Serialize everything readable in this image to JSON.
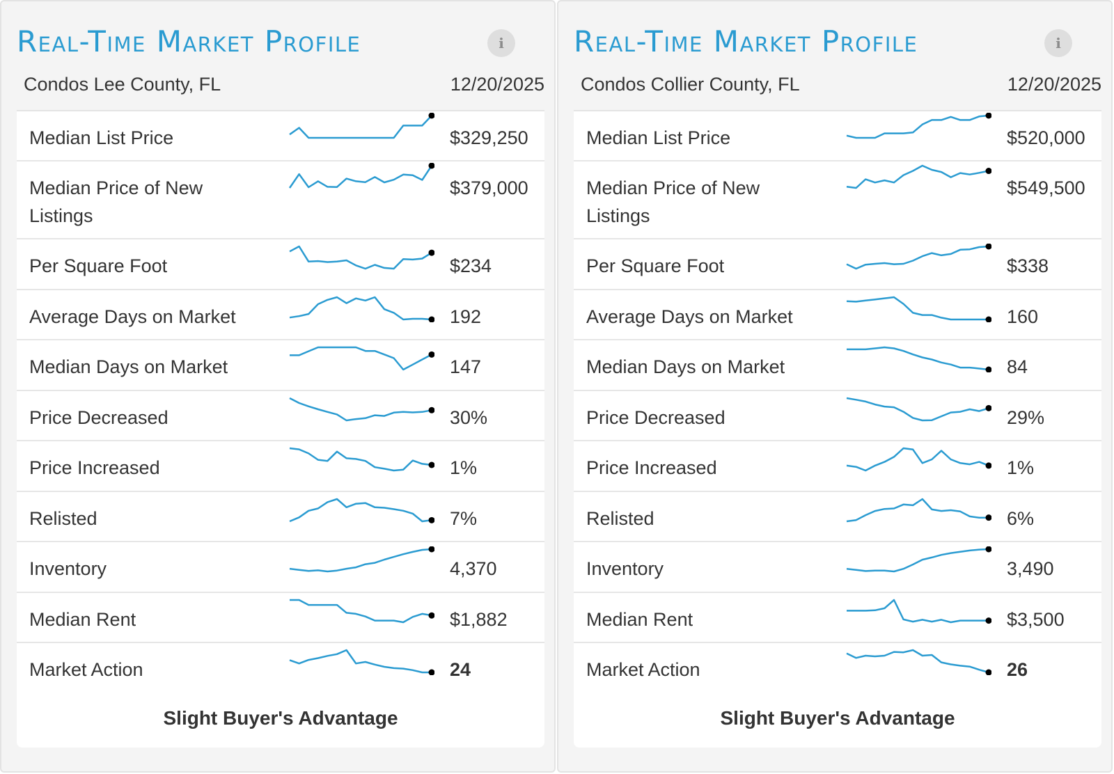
{
  "accent_color": "#2a9bd1",
  "panels": [
    {
      "title": "Real-Time Market Profile",
      "info_icon": "info-icon",
      "region": "Condos Lee County, FL",
      "date": "12/20/2025",
      "verdict": "Slight Buyer's Advantage",
      "rows": [
        {
          "label": "Median List Price",
          "value": "$329,250",
          "trend": [
            0.15,
            0.45,
            0.0,
            0.0,
            0.0,
            0.0,
            0.0,
            0.0,
            0.0,
            0.0,
            0.0,
            0.0,
            0.55,
            0.55,
            0.55,
            1.0
          ]
        },
        {
          "label": "Median Price of New Listings",
          "value": "$379,000",
          "trend": [
            0.0,
            0.62,
            0.03,
            0.3,
            0.05,
            0.04,
            0.42,
            0.3,
            0.26,
            0.49,
            0.25,
            0.37,
            0.6,
            0.57,
            0.36,
            1.0
          ]
        },
        {
          "label": "Per Square Foot",
          "value": "$234",
          "trend": [
            0.8,
            1.0,
            0.4,
            0.42,
            0.38,
            0.4,
            0.45,
            0.25,
            0.12,
            0.27,
            0.15,
            0.12,
            0.5,
            0.48,
            0.52,
            0.75
          ]
        },
        {
          "label": "Average Days on Market",
          "value": "192",
          "trend": [
            0.08,
            0.14,
            0.23,
            0.64,
            0.82,
            0.93,
            0.68,
            0.88,
            0.79,
            0.93,
            0.43,
            0.28,
            0.0,
            0.03,
            0.03,
            0.0
          ]
        },
        {
          "label": "Median Days on Market",
          "value": "147",
          "trend": [
            0.45,
            0.45,
            0.73,
            1.0,
            1.0,
            1.0,
            1.0,
            1.0,
            0.75,
            0.75,
            0.5,
            0.25,
            -0.55,
            -0.2,
            0.15,
            0.5
          ]
        },
        {
          "label": "Price Decreased",
          "value": "30%",
          "trend": [
            1.0,
            0.78,
            0.63,
            0.5,
            0.38,
            0.27,
            0.0,
            0.06,
            0.1,
            0.23,
            0.2,
            0.35,
            0.38,
            0.36,
            0.38,
            0.46
          ]
        },
        {
          "label": "Price Increased",
          "value": "1%",
          "trend": [
            1.0,
            0.95,
            0.77,
            0.48,
            0.43,
            0.85,
            0.55,
            0.52,
            0.43,
            0.15,
            0.08,
            0.0,
            0.04,
            0.45,
            0.3,
            0.25
          ]
        },
        {
          "label": "Relisted",
          "value": "7%",
          "trend": [
            0.0,
            0.17,
            0.45,
            0.55,
            0.82,
            0.95,
            0.6,
            0.75,
            0.78,
            0.6,
            0.58,
            0.52,
            0.45,
            0.33,
            0.0,
            0.05
          ]
        },
        {
          "label": "Inventory",
          "value": "4,370",
          "trend": [
            0.0,
            -0.05,
            -0.1,
            -0.07,
            -0.12,
            -0.08,
            0.0,
            0.06,
            0.2,
            0.26,
            0.4,
            0.52,
            0.64,
            0.74,
            0.83,
            0.86
          ]
        },
        {
          "label": "Median Rent",
          "value": "$1,882",
          "trend": [
            1.0,
            1.0,
            0.76,
            0.76,
            0.76,
            0.76,
            0.38,
            0.33,
            0.2,
            0.0,
            0.0,
            0.0,
            -0.08,
            0.18,
            0.33,
            0.25
          ]
        },
        {
          "label": "Market Action",
          "value": "24",
          "value_bold": true,
          "trend": [
            0.55,
            0.4,
            0.56,
            0.64,
            0.74,
            0.82,
            1.0,
            0.4,
            0.47,
            0.35,
            0.25,
            0.19,
            0.17,
            0.1,
            0.0,
            0.0
          ]
        }
      ]
    },
    {
      "title": "Real-Time Market Profile",
      "info_icon": "info-icon",
      "region": "Condos Collier County, FL",
      "date": "12/20/2025",
      "verdict": "Slight Buyer's Advantage",
      "rows": [
        {
          "label": "Median List Price",
          "value": "$520,000",
          "trend": [
            0.1,
            0.0,
            0.0,
            0.0,
            0.2,
            0.2,
            0.2,
            0.24,
            0.6,
            0.8,
            0.8,
            0.94,
            0.8,
            0.8,
            0.96,
            1.0
          ]
        },
        {
          "label": "Median Price of New Listings",
          "value": "$549,500",
          "trend": [
            0.0,
            -0.06,
            0.35,
            0.2,
            0.3,
            0.2,
            0.55,
            0.75,
            1.0,
            0.8,
            0.7,
            0.45,
            0.65,
            0.58,
            0.66,
            0.75
          ]
        },
        {
          "label": "Per Square Foot",
          "value": "$338",
          "trend": [
            0.2,
            0.0,
            0.18,
            0.22,
            0.25,
            0.2,
            0.22,
            0.36,
            0.56,
            0.7,
            0.6,
            0.66,
            0.85,
            0.87,
            0.97,
            1.0
          ]
        },
        {
          "label": "Average Days on Market",
          "value": "160",
          "trend": [
            0.82,
            0.8,
            0.85,
            0.9,
            0.95,
            1.0,
            0.7,
            0.3,
            0.2,
            0.2,
            0.08,
            0.0,
            0.0,
            0.0,
            0.0,
            0.0
          ]
        },
        {
          "label": "Median Days on Market",
          "value": "84",
          "trend": [
            1.0,
            1.0,
            1.0,
            1.05,
            1.1,
            1.05,
            0.92,
            0.75,
            0.6,
            0.5,
            0.35,
            0.25,
            0.1,
            0.1,
            0.05,
            0.0
          ]
        },
        {
          "label": "Price Decreased",
          "value": "29%",
          "trend": [
            1.0,
            0.93,
            0.85,
            0.72,
            0.63,
            0.6,
            0.4,
            0.13,
            0.02,
            0.03,
            0.2,
            0.37,
            0.4,
            0.51,
            0.43,
            0.56
          ]
        },
        {
          "label": "Price Increased",
          "value": "1%",
          "trend": [
            0.2,
            0.15,
            0.0,
            0.2,
            0.35,
            0.55,
            0.9,
            0.85,
            0.3,
            0.45,
            0.8,
            0.45,
            0.3,
            0.25,
            0.35,
            0.2
          ]
        },
        {
          "label": "Relisted",
          "value": "6%",
          "trend": [
            0.0,
            0.05,
            0.25,
            0.42,
            0.5,
            0.52,
            0.68,
            0.65,
            0.9,
            0.48,
            0.42,
            0.45,
            0.4,
            0.2,
            0.15,
            0.15
          ]
        },
        {
          "label": "Inventory",
          "value": "3,490",
          "trend": [
            0.0,
            -0.05,
            -0.1,
            -0.08,
            -0.08,
            -0.12,
            0.0,
            0.2,
            0.42,
            0.52,
            0.64,
            0.72,
            0.78,
            0.84,
            0.88,
            0.9
          ]
        },
        {
          "label": "Median Rent",
          "value": "$3,500",
          "trend": [
            0.48,
            0.48,
            0.48,
            0.5,
            0.6,
            1.0,
            0.06,
            -0.05,
            0.04,
            -0.05,
            0.04,
            -0.08,
            0.0,
            0.0,
            0.0,
            0.0
          ]
        },
        {
          "label": "Market Action",
          "value": "26",
          "value_bold": true,
          "trend": [
            0.85,
            0.65,
            0.75,
            0.72,
            0.75,
            0.92,
            0.9,
            1.0,
            0.75,
            0.78,
            0.45,
            0.36,
            0.3,
            0.26,
            0.12,
            0.0
          ]
        }
      ]
    }
  ]
}
